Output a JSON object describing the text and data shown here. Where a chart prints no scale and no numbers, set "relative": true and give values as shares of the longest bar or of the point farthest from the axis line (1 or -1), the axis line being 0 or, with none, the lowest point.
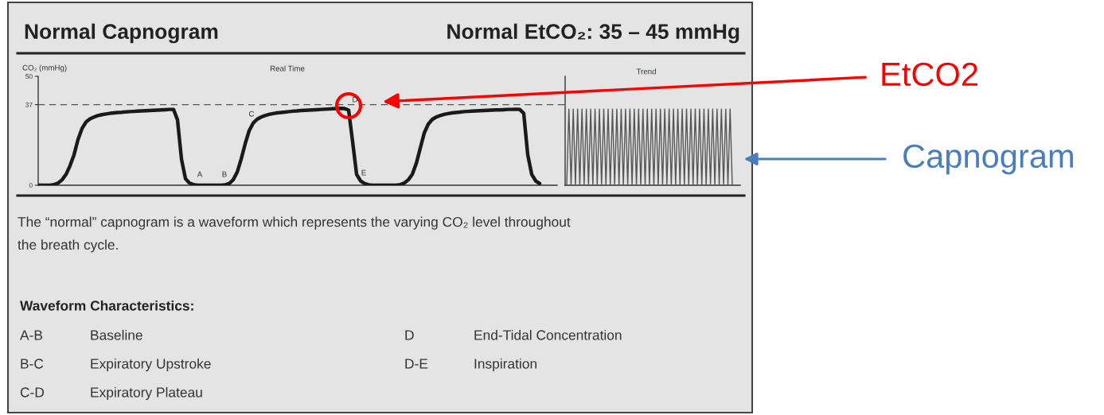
{
  "chart_data": [
    {
      "type": "line",
      "title": "Normal Capnogram",
      "subtitle": "Normal EtCO₂: 35 – 45 mmHg",
      "xlabel": "Real Time",
      "ylabel": "CO₂ (mmHg)",
      "color": "#1a1a1a",
      "categories": [
        null,
        null,
        null,
        null,
        null,
        null,
        null,
        null,
        null,
        null,
        null,
        null,
        null,
        null,
        null,
        null,
        null,
        null,
        null,
        null,
        null,
        null,
        null,
        null,
        null,
        null,
        null,
        null,
        null,
        null,
        null,
        null,
        null,
        null,
        null,
        null,
        null,
        null,
        null,
        null,
        null,
        null,
        null,
        null,
        null,
        null,
        null,
        null,
        null,
        null,
        null,
        null,
        null,
        null,
        null,
        null,
        null,
        null,
        null,
        null,
        null,
        null,
        null,
        null,
        null,
        null,
        null,
        null,
        null,
        null,
        null,
        null,
        null,
        null,
        null,
        null,
        null,
        null,
        null,
        null,
        null,
        null,
        null,
        null,
        null,
        null,
        null,
        null,
        null,
        null,
        null,
        null,
        null,
        null,
        null,
        null,
        null,
        null,
        null,
        null,
        null,
        null,
        null,
        null,
        null,
        null,
        null,
        null,
        null,
        null,
        null,
        null,
        null,
        null,
        null,
        null,
        null,
        null,
        null,
        null,
        null,
        null,
        null,
        null,
        null,
        null,
        null
      ],
      "values": [
        0,
        0,
        0,
        0,
        0.3,
        1,
        2.5,
        5,
        9,
        14,
        21,
        26,
        29,
        30.5,
        31.3,
        32,
        32.4,
        32.7,
        33,
        33.2,
        33.4,
        33.5,
        33.7,
        33.8,
        33.9,
        34,
        34.1,
        34.2,
        34.3,
        34.4,
        34.5,
        34.6,
        34.7,
        34.8,
        34.8,
        30,
        12,
        3,
        1,
        0.3,
        0,
        0,
        0,
        0,
        0,
        0,
        0,
        0.2,
        0.8,
        2.5,
        6,
        12,
        19,
        25,
        28.5,
        30.3,
        31.3,
        32,
        32.5,
        32.9,
        33.2,
        33.4,
        33.6,
        33.8,
        34,
        34.1,
        34.3,
        34.4,
        34.5,
        34.6,
        34.7,
        34.8,
        34.9,
        35,
        35.1,
        35.2,
        35.3,
        35.2,
        34.5,
        20,
        5,
        2,
        0.8,
        0.2,
        0,
        0,
        0,
        0,
        0,
        0,
        0,
        0.3,
        1,
        2.5,
        5,
        10,
        17,
        24,
        28,
        30.2,
        31.3,
        32,
        32.5,
        32.9,
        33.2,
        33.4,
        33.6,
        33.8,
        33.9,
        34,
        34.1,
        34.2,
        34.3,
        34.4,
        34.5,
        34.6,
        34.6,
        34.7,
        34.8,
        34.8,
        34.9,
        34.8,
        33,
        14,
        5,
        2,
        0.8
      ],
      "ylim": [
        0,
        50
      ],
      "yticks": [
        0,
        37,
        50
      ],
      "tick_labels": "y",
      "ref_lines": [
        {
          "axis": "y",
          "value": 37,
          "color": "#555555",
          "line_style": "dashed"
        }
      ],
      "annotations": [
        "A",
        "B",
        "C",
        "D",
        "E",
        "The “normal” capnogram is a waveform which represents the varying CO₂ level throughout\nthe breath cycle.",
        "Waveform Characteristics:",
        "A-B",
        "Baseline",
        "B-C",
        "Expiratory Upstroke",
        "C-D",
        "Expiratory Plateau",
        "D",
        "End-Tidal Concentration",
        "D-E",
        "Inspiration",
        "EtCO2"
      ]
    },
    {
      "type": "line",
      "title": "Trend",
      "color": "#555555",
      "categories": [
        null,
        null,
        null,
        null,
        null,
        null,
        null,
        null,
        null,
        null,
        null,
        null,
        null,
        null,
        null,
        null,
        null,
        null,
        null,
        null,
        null,
        null,
        null,
        null,
        null,
        null,
        null,
        null,
        null,
        null,
        null,
        null,
        null,
        null,
        null,
        null,
        null,
        null,
        null,
        null,
        null,
        null,
        null,
        null,
        null,
        null,
        null,
        null,
        null,
        null,
        null,
        null,
        null,
        null,
        null,
        null,
        null,
        null,
        null,
        null,
        null,
        null,
        null,
        null,
        null,
        null,
        null,
        null,
        null,
        null,
        null,
        null,
        null,
        null,
        null,
        null,
        null
      ],
      "values": [
        0,
        1,
        0,
        1,
        0,
        1,
        0,
        1,
        0,
        1,
        0,
        1,
        0,
        1,
        0,
        1,
        0,
        1,
        0,
        1,
        0,
        1,
        0,
        1,
        0,
        1,
        0,
        1,
        0,
        1,
        0,
        1,
        0,
        1,
        0,
        1,
        0,
        1,
        0,
        1,
        0,
        1,
        0,
        1,
        0,
        1,
        0,
        1,
        0,
        1,
        0,
        1,
        0,
        1,
        0,
        1,
        0,
        1,
        0,
        1,
        0,
        1,
        0,
        1,
        0,
        1,
        0,
        1,
        0,
        1,
        0,
        1,
        0,
        1,
        0,
        1,
        0
      ],
      "relative": true,
      "annotations": [
        "Capnogram"
      ]
    }
  ]
}
